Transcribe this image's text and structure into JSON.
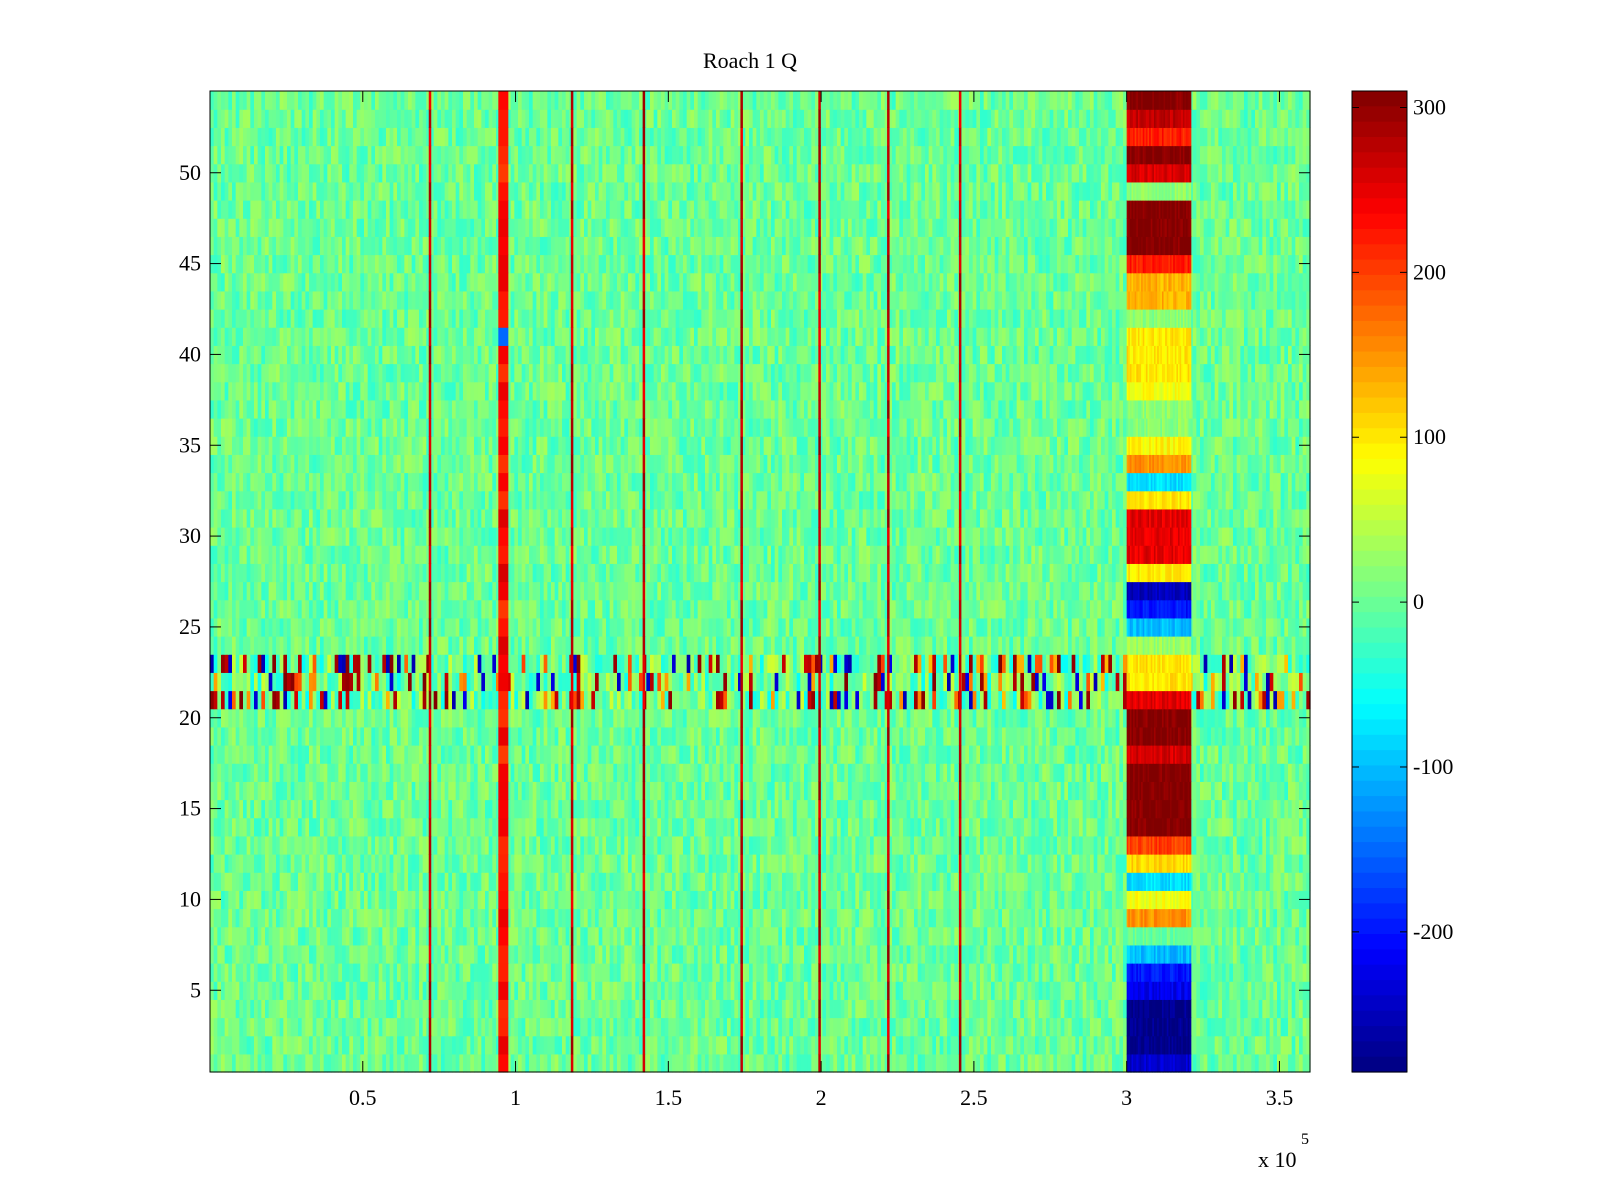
{
  "chart_data": {
    "type": "heatmap",
    "title": "Roach 1 Q",
    "xlabel": "",
    "ylabel": "",
    "xlim": [
      0,
      360000
    ],
    "ylim": [
      0.5,
      54.5
    ],
    "x_ticks": [
      50000,
      100000,
      150000,
      200000,
      250000,
      300000,
      350000
    ],
    "x_tick_labels": [
      "0.5",
      "1",
      "1.5",
      "2",
      "2.5",
      "3",
      "3.5"
    ],
    "x_exponent_label": "x 10",
    "x_exponent_power": "5",
    "y_ticks": [
      5,
      10,
      15,
      20,
      25,
      30,
      35,
      40,
      45,
      50
    ],
    "y_tick_labels": [
      "5",
      "10",
      "15",
      "20",
      "25",
      "30",
      "35",
      "40",
      "45",
      "50"
    ],
    "colormap": "jet",
    "clim": [
      -285,
      310
    ],
    "colorbar": {
      "ticks": [
        300,
        200,
        100,
        0,
        -100,
        -200
      ],
      "tick_labels": [
        "300",
        "200",
        "100",
        "0",
        "-100",
        "-200"
      ],
      "location": "right"
    },
    "rows": 54,
    "background_value": 0,
    "spike_columns": [
      {
        "x": 72000,
        "value": 300
      },
      {
        "x": 96000,
        "value": 260
      },
      {
        "x": 118500,
        "value": 300
      },
      {
        "x": 142000,
        "value": 300
      },
      {
        "x": 174000,
        "value": 300
      },
      {
        "x": 199500,
        "value": 300
      },
      {
        "x": 222000,
        "value": 300
      },
      {
        "x": 245500,
        "value": 300
      }
    ],
    "anomaly_rows": [
      21,
      22,
      23
    ],
    "anomaly_block": {
      "x_range": [
        300000,
        321000
      ],
      "row_values": [
        {
          "rows": [
            1,
            1
          ],
          "value": -240
        },
        {
          "rows": [
            2,
            4
          ],
          "value": -280
        },
        {
          "rows": [
            5,
            5
          ],
          "value": -220
        },
        {
          "rows": [
            6,
            6
          ],
          "value": -200
        },
        {
          "rows": [
            7,
            7
          ],
          "value": -100
        },
        {
          "rows": [
            8,
            8
          ],
          "value": 0
        },
        {
          "rows": [
            9,
            9
          ],
          "value": 150
        },
        {
          "rows": [
            10,
            10
          ],
          "value": 80
        },
        {
          "rows": [
            11,
            11
          ],
          "value": -80
        },
        {
          "rows": [
            12,
            12
          ],
          "value": 110
        },
        {
          "rows": [
            13,
            13
          ],
          "value": 200
        },
        {
          "rows": [
            14,
            17
          ],
          "value": 310
        },
        {
          "rows": [
            18,
            18
          ],
          "value": 260
        },
        {
          "rows": [
            19,
            20
          ],
          "value": 310
        },
        {
          "rows": [
            21,
            21
          ],
          "value": 250
        },
        {
          "rows": [
            22,
            23
          ],
          "value": 100
        },
        {
          "rows": [
            24,
            24
          ],
          "value": 30
        },
        {
          "rows": [
            25,
            25
          ],
          "value": -100
        },
        {
          "rows": [
            26,
            26
          ],
          "value": -200
        },
        {
          "rows": [
            27,
            27
          ],
          "value": -250
        },
        {
          "rows": [
            28,
            28
          ],
          "value": 100
        },
        {
          "rows": [
            29,
            31
          ],
          "value": 250
        },
        {
          "rows": [
            32,
            32
          ],
          "value": 100
        },
        {
          "rows": [
            33,
            33
          ],
          "value": -80
        },
        {
          "rows": [
            34,
            34
          ],
          "value": 150
        },
        {
          "rows": [
            35,
            35
          ],
          "value": 90
        },
        {
          "rows": [
            36,
            37
          ],
          "value": 20
        },
        {
          "rows": [
            38,
            38
          ],
          "value": 80
        },
        {
          "rows": [
            39,
            41
          ],
          "value": 100
        },
        {
          "rows": [
            42,
            42
          ],
          "value": 20
        },
        {
          "rows": [
            43,
            44
          ],
          "value": 130
        },
        {
          "rows": [
            45,
            45
          ],
          "value": 220
        },
        {
          "rows": [
            46,
            48
          ],
          "value": 310
        },
        {
          "rows": [
            49,
            49
          ],
          "value": 20
        },
        {
          "rows": [
            50,
            50
          ],
          "value": 260
        },
        {
          "rows": [
            51,
            51
          ],
          "value": 310
        },
        {
          "rows": [
            52,
            52
          ],
          "value": 220
        },
        {
          "rows": [
            53,
            53
          ],
          "value": 270
        },
        {
          "rows": [
            54,
            54
          ],
          "value": 310
        }
      ]
    }
  }
}
